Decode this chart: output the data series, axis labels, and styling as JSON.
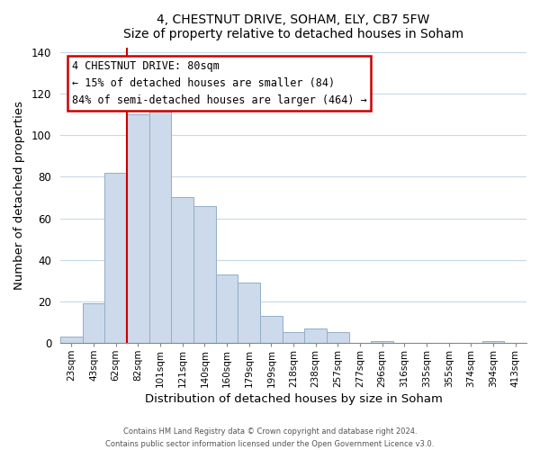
{
  "title1": "4, CHESTNUT DRIVE, SOHAM, ELY, CB7 5FW",
  "title2": "Size of property relative to detached houses in Soham",
  "xlabel": "Distribution of detached houses by size in Soham",
  "ylabel": "Number of detached properties",
  "bar_labels": [
    "23sqm",
    "43sqm",
    "62sqm",
    "82sqm",
    "101sqm",
    "121sqm",
    "140sqm",
    "160sqm",
    "179sqm",
    "199sqm",
    "218sqm",
    "238sqm",
    "257sqm",
    "277sqm",
    "296sqm",
    "316sqm",
    "335sqm",
    "355sqm",
    "374sqm",
    "394sqm",
    "413sqm"
  ],
  "bar_values": [
    3,
    19,
    82,
    110,
    113,
    70,
    66,
    33,
    29,
    13,
    5,
    7,
    5,
    0,
    1,
    0,
    0,
    0,
    0,
    1,
    0
  ],
  "bar_color": "#ccdaeb",
  "bar_edge_color": "#92aec8",
  "property_line_label": "4 CHESTNUT DRIVE: 80sqm",
  "annotation_line1": "← 15% of detached houses are smaller (84)",
  "annotation_line2": "84% of semi-detached houses are larger (464) →",
  "annotation_box_color": "#ffffff",
  "annotation_box_edge_color": "#cc0000",
  "line_color": "#cc0000",
  "ylim": [
    0,
    142
  ],
  "yticks": [
    0,
    20,
    40,
    60,
    80,
    100,
    120,
    140
  ],
  "footer1": "Contains HM Land Registry data © Crown copyright and database right 2024.",
  "footer2": "Contains public sector information licensed under the Open Government Licence v3.0."
}
